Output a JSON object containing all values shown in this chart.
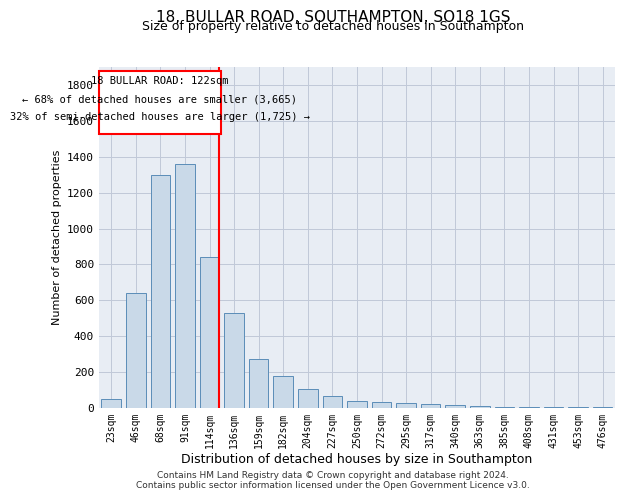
{
  "title_line1": "18, BULLAR ROAD, SOUTHAMPTON, SO18 1GS",
  "title_line2": "Size of property relative to detached houses in Southampton",
  "xlabel": "Distribution of detached houses by size in Southampton",
  "ylabel": "Number of detached properties",
  "footer_line1": "Contains HM Land Registry data © Crown copyright and database right 2024.",
  "footer_line2": "Contains public sector information licensed under the Open Government Licence v3.0.",
  "annotation_line1": "18 BULLAR ROAD: 122sqm",
  "annotation_line2": "← 68% of detached houses are smaller (3,665)",
  "annotation_line3": "32% of semi-detached houses are larger (1,725) →",
  "property_size_sqm": 122,
  "bar_color": "#c9d9e8",
  "bar_edge_color": "#5b8db8",
  "redline_color": "red",
  "categories": [
    "23sqm",
    "46sqm",
    "68sqm",
    "91sqm",
    "114sqm",
    "136sqm",
    "159sqm",
    "182sqm",
    "204sqm",
    "227sqm",
    "250sqm",
    "272sqm",
    "295sqm",
    "317sqm",
    "340sqm",
    "363sqm",
    "385sqm",
    "408sqm",
    "431sqm",
    "453sqm",
    "476sqm"
  ],
  "values": [
    50,
    640,
    1300,
    1360,
    840,
    530,
    270,
    175,
    105,
    65,
    35,
    30,
    25,
    18,
    12,
    8,
    5,
    3,
    2,
    1,
    1
  ],
  "ylim": [
    0,
    1900
  ],
  "yticks": [
    0,
    200,
    400,
    600,
    800,
    1000,
    1200,
    1400,
    1600,
    1800
  ],
  "highlighted_bar_index": 4,
  "grid_color": "#c0c8d8",
  "background_color": "#e8edf4"
}
